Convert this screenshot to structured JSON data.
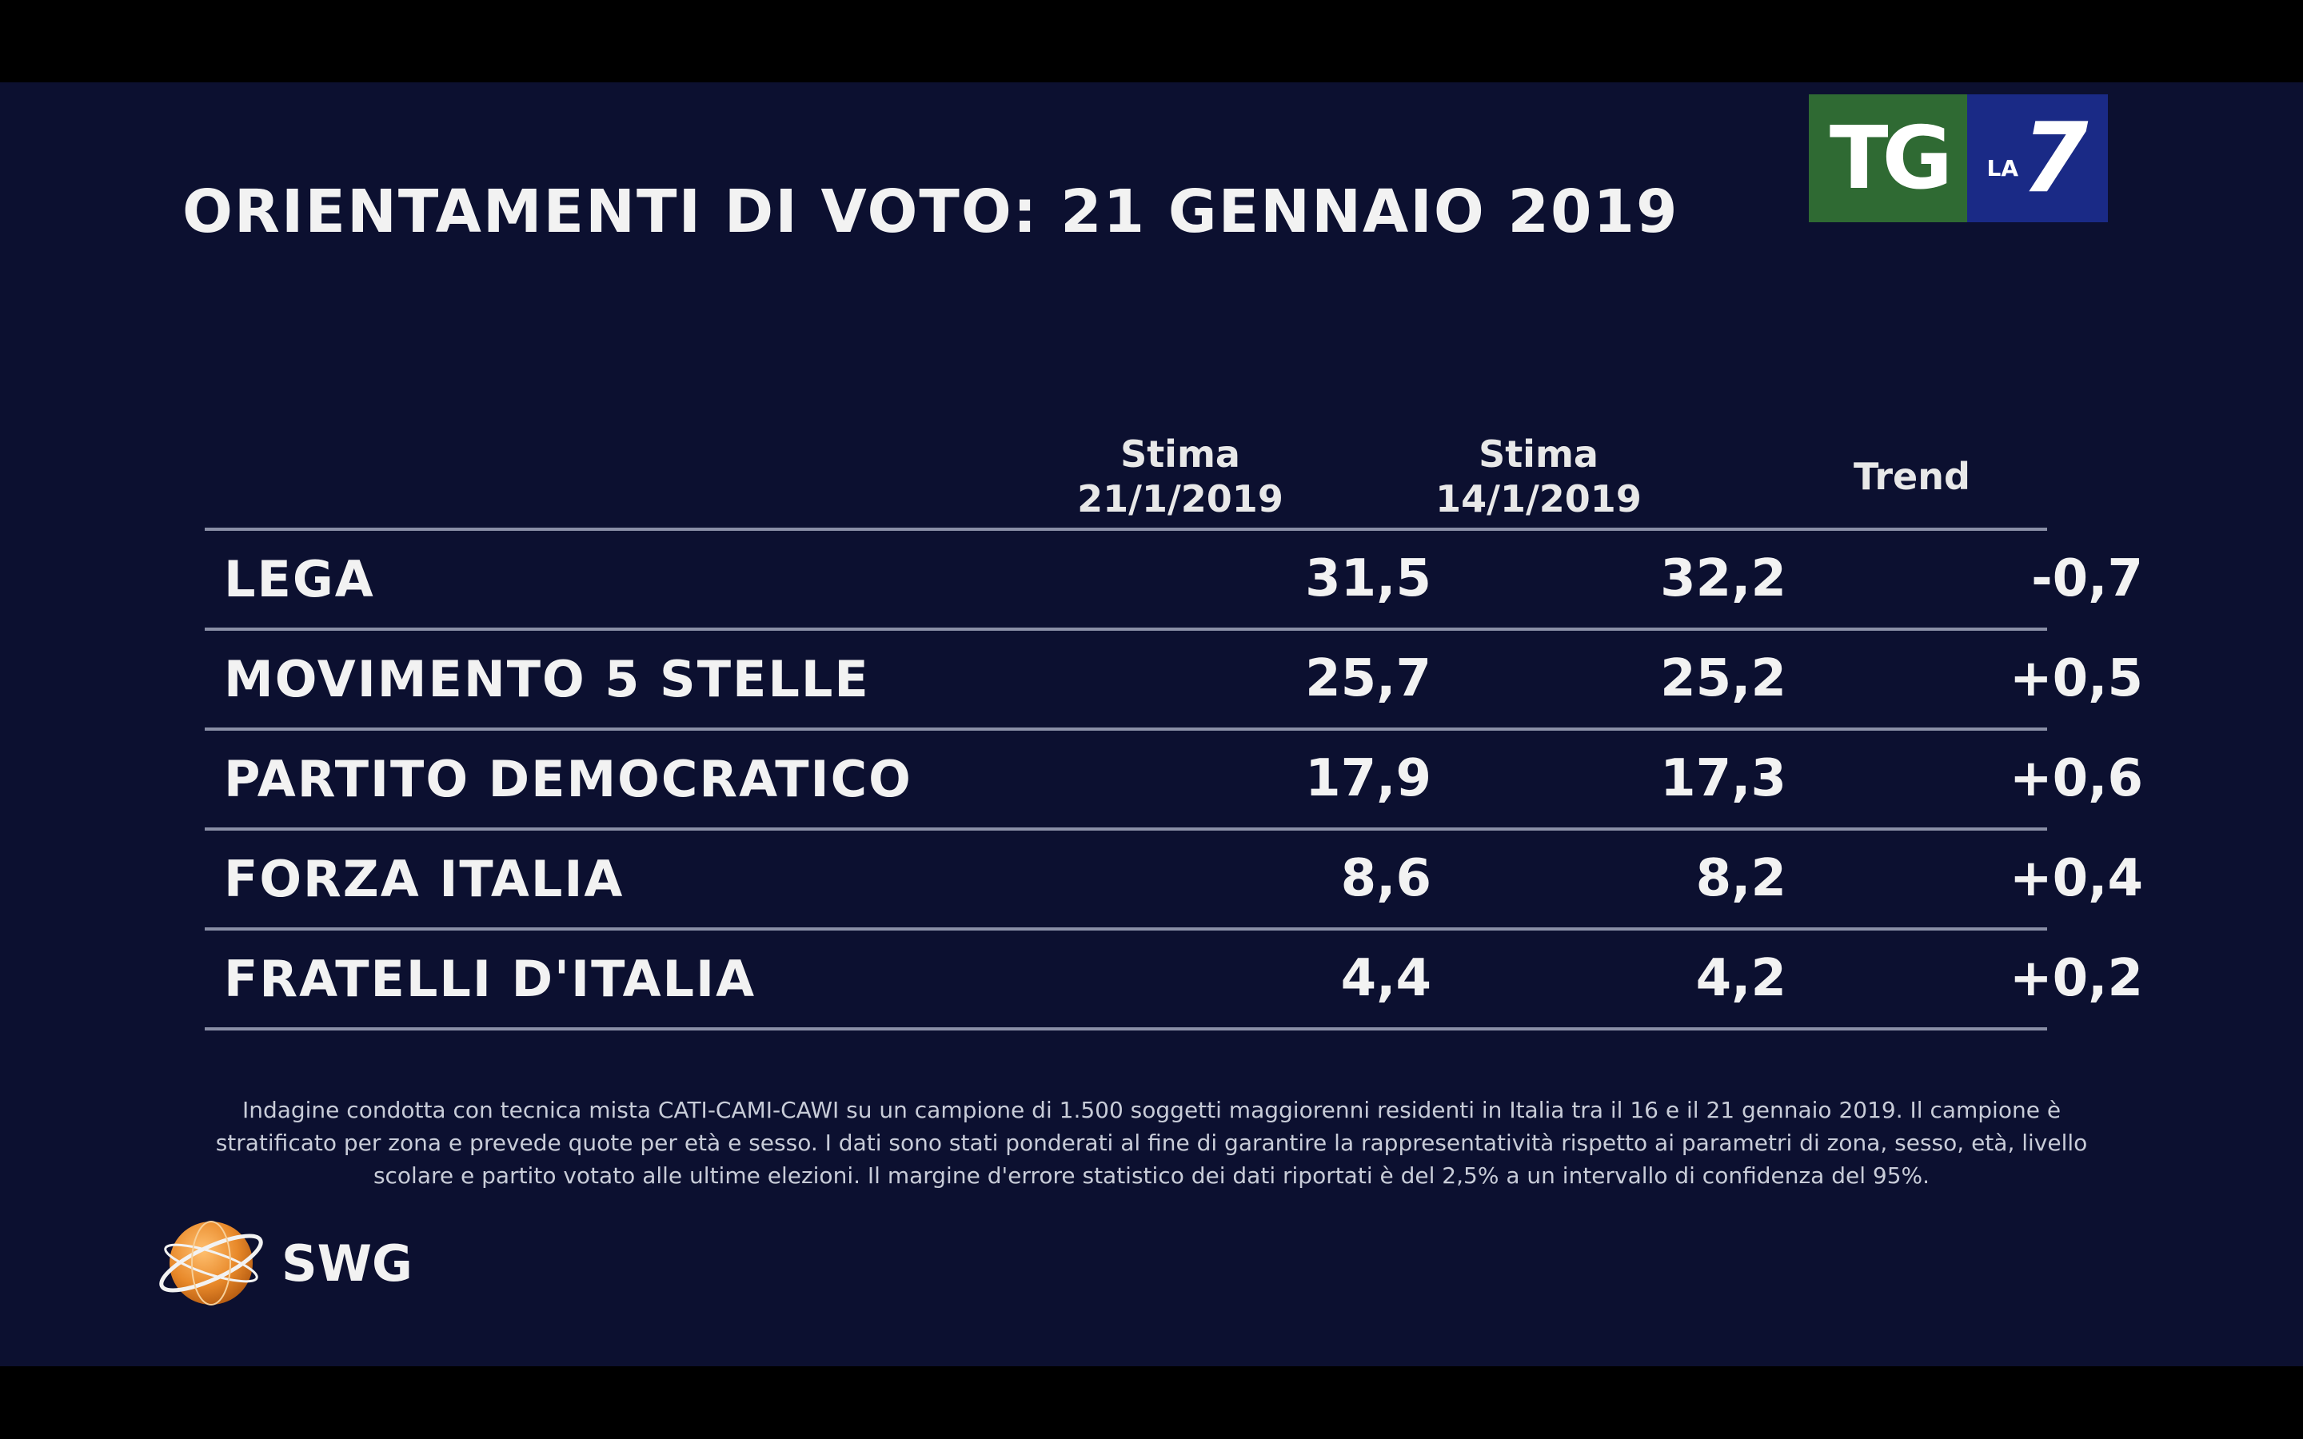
{
  "logo": {
    "tg": "TG",
    "la": "LA",
    "seven": "7"
  },
  "chart_data": {
    "type": "table",
    "title": "ORIENTAMENTI DI VOTO: 21 GENNAIO 2019",
    "columns": [
      {
        "line1": "Stima",
        "line2": "21/1/2019"
      },
      {
        "line1": "Stima",
        "line2": "14/1/2019"
      },
      {
        "line1": "Trend",
        "line2": ""
      }
    ],
    "rows": [
      {
        "party": "LEGA",
        "v1": "31,5",
        "v2": "32,2",
        "trend": "-0,7"
      },
      {
        "party": "MOVIMENTO 5 STELLE",
        "v1": "25,7",
        "v2": "25,2",
        "trend": "+0,5"
      },
      {
        "party": "PARTITO DEMOCRATICO",
        "v1": "17,9",
        "v2": "17,3",
        "trend": "+0,6"
      },
      {
        "party": "FORZA ITALIA",
        "v1": "8,6",
        "v2": "8,2",
        "trend": "+0,4"
      },
      {
        "party": "FRATELLI D'ITALIA",
        "v1": "4,4",
        "v2": "4,2",
        "trend": "+0,2"
      }
    ]
  },
  "footnote": {
    "line1": "Indagine condotta con tecnica mista CATI-CAMI-CAWI su un campione di 1.500 soggetti maggiorenni residenti in Italia tra il 16 e il 21 gennaio 2019. Il campione è",
    "line2": "stratificato per zona e prevede quote per età e sesso. I dati sono stati ponderati al fine di garantire la rappresentatività rispetto ai parametri di zona, sesso, età, livello",
    "line3": "scolare e partito votato alle ultime elezioni. Il margine d'errore statistico dei dati riportati è del 2,5% a un intervallo di confidenza del 95%."
  },
  "brand": {
    "name": "SWG",
    "globe_color": "#e8892a"
  }
}
